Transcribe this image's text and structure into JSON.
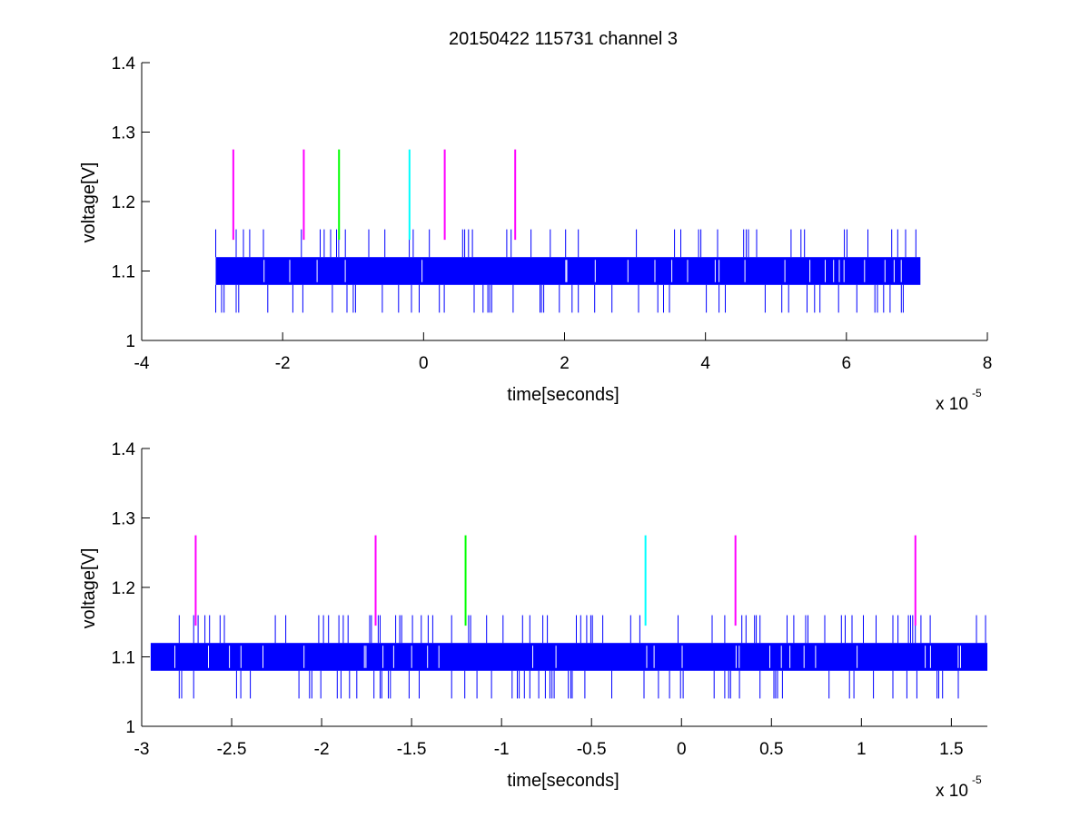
{
  "figure": {
    "background": "#ffffff"
  },
  "chart_data": [
    {
      "type": "line",
      "title": "20150422 115731 channel 3",
      "xlabel": "time[seconds]",
      "ylabel": "voltage[V]",
      "x_multiplier_label": "x 10",
      "x_multiplier_exponent": "-5",
      "xlim": [
        -4,
        8
      ],
      "ylim": [
        1,
        1.4
      ],
      "x_ticks": [
        -4,
        -2,
        0,
        2,
        4,
        6,
        8
      ],
      "x_tick_labels": [
        "-4",
        "-2",
        "0",
        "2",
        "4",
        "6",
        "8"
      ],
      "y_ticks": [
        1,
        1.1,
        1.2,
        1.3,
        1.4
      ],
      "y_tick_labels": [
        "1",
        "1.1",
        "1.2",
        "1.3",
        "1.4"
      ],
      "grid": false,
      "series": [
        {
          "kind": "noisy-signal",
          "color": "#0000ff",
          "x_range": [
            -2.95,
            7.05
          ],
          "band": [
            1.08,
            1.12
          ],
          "spike_high": 1.16,
          "spike_low": 1.04
        }
      ],
      "markers": [
        {
          "x": -2.7,
          "y": [
            1.145,
            1.275
          ],
          "color": "#ff00ff"
        },
        {
          "x": -1.7,
          "y": [
            1.145,
            1.275
          ],
          "color": "#ff00ff"
        },
        {
          "x": -1.2,
          "y": [
            1.145,
            1.275
          ],
          "color": "#00ff00"
        },
        {
          "x": -0.2,
          "y": [
            1.145,
            1.275
          ],
          "color": "#00ffff"
        },
        {
          "x": 0.3,
          "y": [
            1.145,
            1.275
          ],
          "color": "#ff00ff"
        },
        {
          "x": 1.3,
          "y": [
            1.145,
            1.275
          ],
          "color": "#ff00ff"
        }
      ]
    },
    {
      "type": "line",
      "title": "",
      "xlabel": "time[seconds]",
      "ylabel": "voltage[V]",
      "x_multiplier_label": "x 10",
      "x_multiplier_exponent": "-5",
      "xlim": [
        -3,
        1.7
      ],
      "ylim": [
        1,
        1.4
      ],
      "x_ticks": [
        -3,
        -2.5,
        -2,
        -1.5,
        -1,
        -0.5,
        0,
        0.5,
        1,
        1.5
      ],
      "x_tick_labels": [
        "-3",
        "-2.5",
        "-2",
        "-1.5",
        "-1",
        "-0.5",
        "0",
        "0.5",
        "1",
        "1.5"
      ],
      "y_ticks": [
        1,
        1.1,
        1.2,
        1.3,
        1.4
      ],
      "y_tick_labels": [
        "1",
        "1.1",
        "1.2",
        "1.3",
        "1.4"
      ],
      "grid": false,
      "series": [
        {
          "kind": "noisy-signal",
          "color": "#0000ff",
          "x_range": [
            -2.95,
            1.7
          ],
          "band": [
            1.08,
            1.12
          ],
          "spike_high": 1.16,
          "spike_low": 1.04
        }
      ],
      "markers": [
        {
          "x": -2.7,
          "y": [
            1.145,
            1.275
          ],
          "color": "#ff00ff"
        },
        {
          "x": -1.7,
          "y": [
            1.145,
            1.275
          ],
          "color": "#ff00ff"
        },
        {
          "x": -1.2,
          "y": [
            1.145,
            1.275
          ],
          "color": "#00ff00"
        },
        {
          "x": -0.2,
          "y": [
            1.145,
            1.275
          ],
          "color": "#00ffff"
        },
        {
          "x": 0.3,
          "y": [
            1.145,
            1.275
          ],
          "color": "#ff00ff"
        },
        {
          "x": 1.3,
          "y": [
            1.145,
            1.275
          ],
          "color": "#ff00ff"
        }
      ]
    }
  ]
}
